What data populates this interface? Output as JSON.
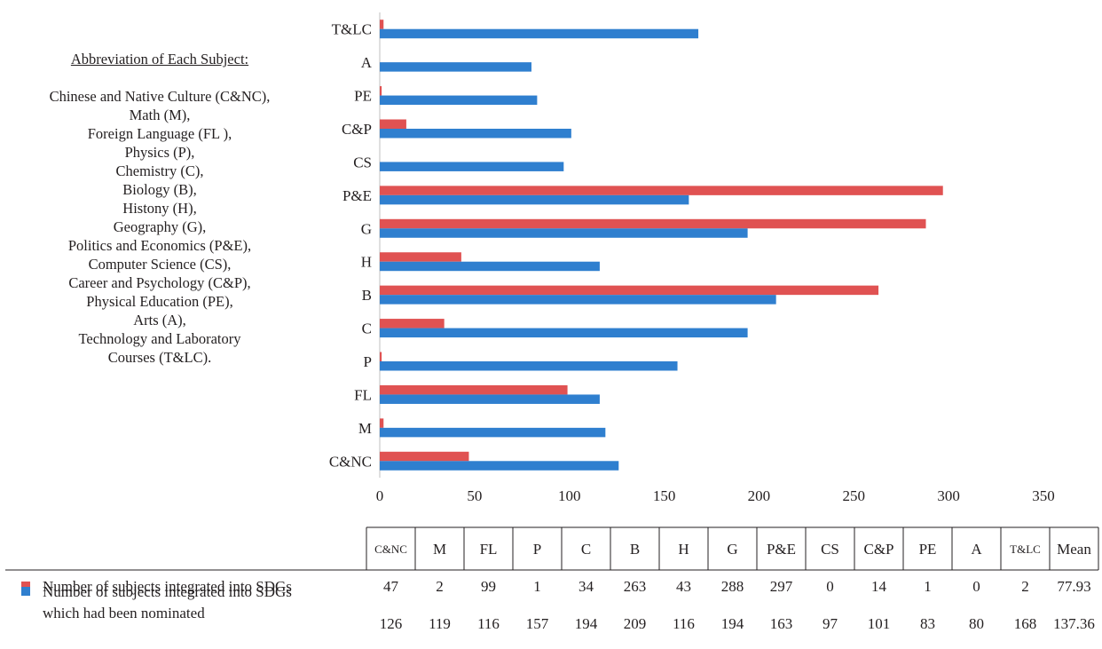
{
  "legend_panel": {
    "heading": "Abbreviation of Each Subject:",
    "lines": [
      "Chinese and Native Culture (C&NC),",
      "Math (M),",
      "Foreign Language (FL ),",
      "Physics (P),",
      "Chemistry (C),",
      "Biology (B),",
      "Histony (H),",
      "Geography (G),",
      "Politics and Economics (P&E),",
      "Computer Science (CS),",
      "Career and Psychology (C&P),",
      "Physical Education (PE),",
      "Arts (A),",
      "Technology and Laboratory",
      "Courses (T&LC)."
    ]
  },
  "colors": {
    "red": "#e05252",
    "blue": "#2f7fcf"
  },
  "chart_data": {
    "type": "bar",
    "orientation": "horizontal",
    "categories": [
      "C&NC",
      "M",
      "FL",
      "P",
      "C",
      "B",
      "H",
      "G",
      "P&E",
      "CS",
      "C&P",
      "PE",
      "A",
      "T&LC"
    ],
    "series": [
      {
        "name": "Number of subjects integrated into SDGs",
        "color": "#e05252",
        "values": [
          47,
          2,
          99,
          1,
          34,
          263,
          43,
          288,
          297,
          0,
          14,
          1,
          0,
          2
        ]
      },
      {
        "name": "Number of subjects integrated into SDGs which had been nominated",
        "color": "#2f7fcf",
        "values": [
          126,
          119,
          116,
          157,
          194,
          209,
          116,
          194,
          163,
          97,
          101,
          83,
          80,
          168
        ]
      }
    ],
    "xlim": [
      0,
      350
    ],
    "xticks": [
      0,
      50,
      100,
      150,
      200,
      250,
      300,
      350
    ],
    "grid": false,
    "legend": "bottom (in table)"
  },
  "table": {
    "headers": [
      "C&NC",
      "M",
      "FL",
      "P",
      "C",
      "B",
      "H",
      "G",
      "P&E",
      "CS",
      "C&P",
      "PE",
      "A",
      "T&LC",
      "Mean"
    ],
    "rows": [
      {
        "label_lines": [
          "Number of subjects integrated into SDGs"
        ],
        "color": "#e05252",
        "cells": [
          "47",
          "2",
          "99",
          "1",
          "34",
          "263",
          "43",
          "288",
          "297",
          "0",
          "14",
          "1",
          "0",
          "2",
          "77.93"
        ]
      },
      {
        "label_lines": [
          "Number of subjects integrated into SDGs",
          "which had been nominated"
        ],
        "color": "#2f7fcf",
        "cells": [
          "126",
          "119",
          "116",
          "157",
          "194",
          "209",
          "116",
          "194",
          "163",
          "97",
          "101",
          "83",
          "80",
          "168",
          "137.36"
        ]
      }
    ]
  }
}
